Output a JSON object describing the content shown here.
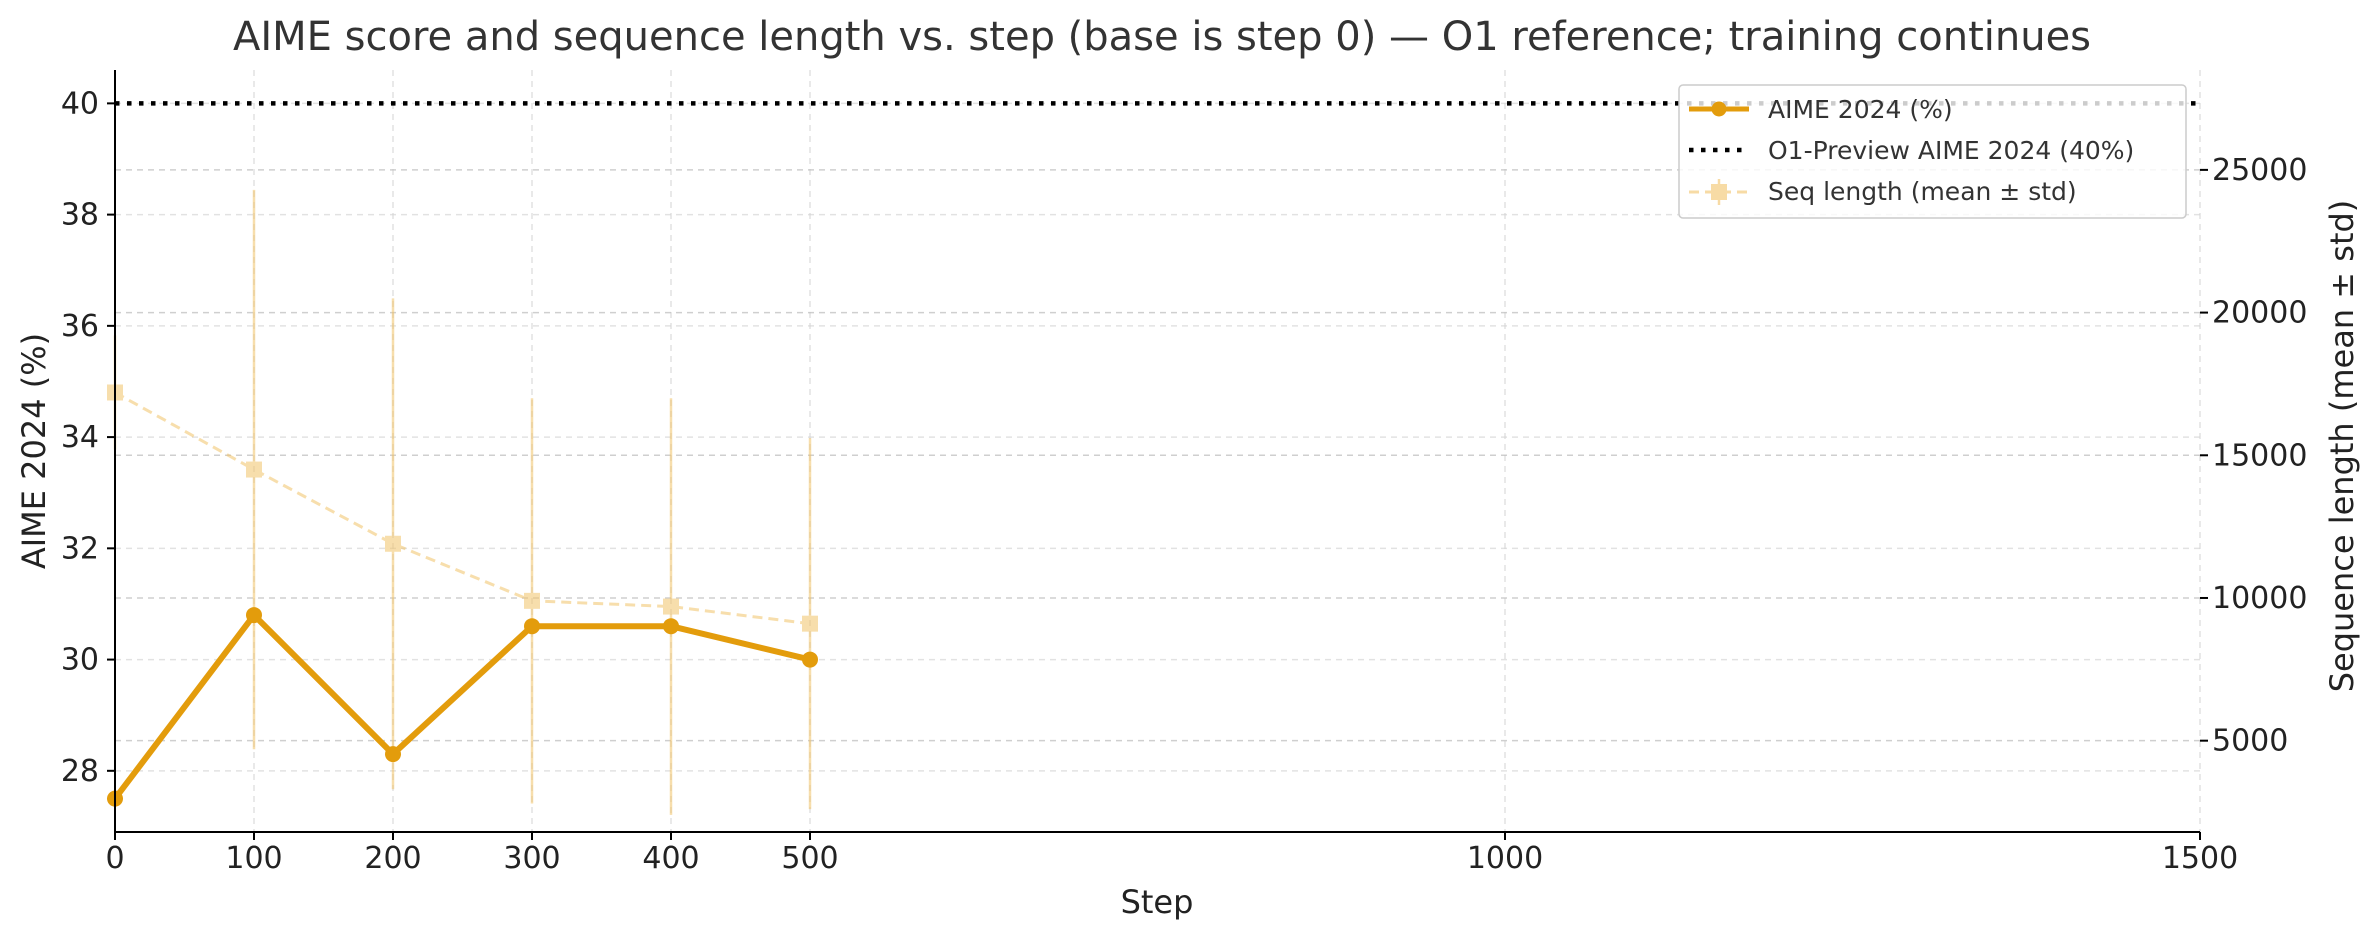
{
  "colors": {
    "aime": "#E39C0C",
    "seq": "#F2C46A",
    "reference": "#000000",
    "grid": "#d6d6d6",
    "axis": "#000000"
  },
  "chart_data": {
    "type": "line",
    "title": "AIME score and sequence length vs. step (base is step 0) — O1 reference; training continues",
    "xlabel": "Step",
    "ylabel": "AIME 2024 (%)",
    "y2label": "Sequence length (mean ± std)",
    "xlim": [
      0,
      1500
    ],
    "ylim": [
      26.9,
      40.6
    ],
    "y2lim": [
      1800,
      28500
    ],
    "x_ticks": [
      "0",
      "100",
      "200",
      "300",
      "400",
      "500",
      "1000",
      "1500"
    ],
    "y_ticks": [
      "28",
      "30",
      "32",
      "34",
      "36",
      "38",
      "40"
    ],
    "y2_ticks": [
      "5000",
      "10000",
      "15000",
      "20000",
      "25000"
    ],
    "grid": true,
    "legend_position": "top-right",
    "series": [
      {
        "name": "AIME 2024 (%)",
        "axis": "left",
        "style": "solid line with circle markers",
        "x": [
          0,
          100,
          200,
          300,
          400,
          500
        ],
        "values": [
          27.5,
          30.8,
          28.3,
          30.6,
          30.6,
          30.0
        ]
      },
      {
        "name": "Seq length (mean ± std)",
        "axis": "right",
        "style": "dashed line with square markers and error bars",
        "x": [
          0,
          100,
          200,
          300,
          400,
          500
        ],
        "values": [
          17200,
          14500,
          11900,
          9900,
          9700,
          9100
        ],
        "std": [
          2000,
          9800,
          8600,
          7100,
          7300,
          6500
        ]
      }
    ],
    "reference_lines": [
      {
        "name": "O1-Preview AIME 2024 (40%)",
        "axis": "left",
        "value": 40,
        "style": "dotted"
      }
    ]
  }
}
